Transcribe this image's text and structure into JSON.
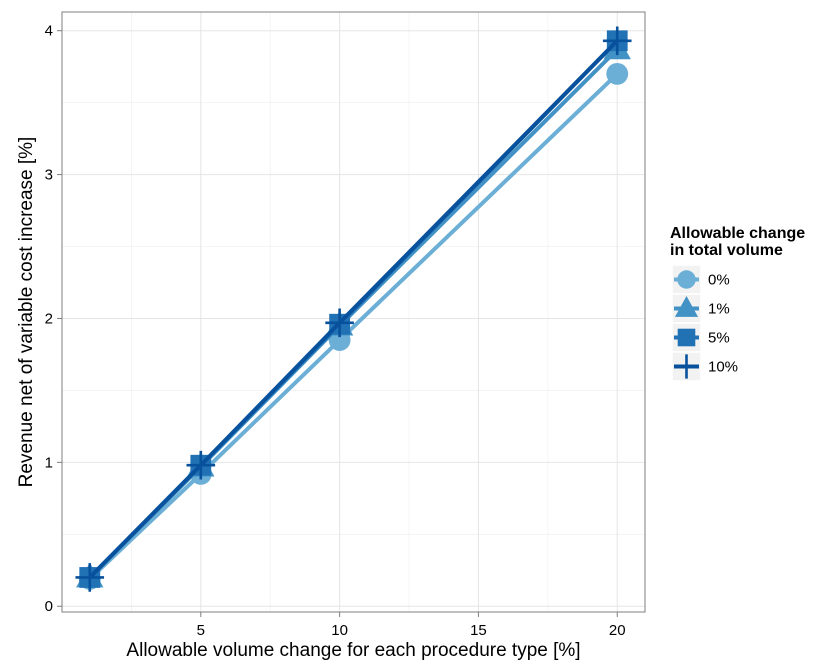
{
  "chart_data": {
    "type": "line",
    "xlabel": "Allowable volume change for each procedure type [%]",
    "ylabel": "Revenue net of variable cost increase [%]",
    "xlim": [
      0,
      21
    ],
    "ylim": [
      -0.04,
      4.13
    ],
    "x_ticks": [
      5,
      10,
      15,
      20
    ],
    "y_ticks": [
      0,
      1,
      2,
      3,
      4
    ],
    "grid": true,
    "legend": {
      "title_lines": [
        "Allowable change",
        "in total volume"
      ],
      "placement": "right"
    },
    "x": [
      1,
      5,
      10,
      20
    ],
    "series": [
      {
        "name": "0%",
        "marker": "circle",
        "color": "#6baed6",
        "values": [
          0.19,
          0.92,
          1.85,
          3.7
        ]
      },
      {
        "name": "1%",
        "marker": "triangle",
        "color": "#4292c6",
        "values": [
          0.2,
          0.97,
          1.95,
          3.87
        ]
      },
      {
        "name": "5%",
        "marker": "square",
        "color": "#2171b5",
        "values": [
          0.2,
          0.98,
          1.96,
          3.93
        ]
      },
      {
        "name": "10%",
        "marker": "plus",
        "color": "#08519c",
        "values": [
          0.2,
          0.98,
          1.97,
          3.93
        ]
      }
    ]
  }
}
